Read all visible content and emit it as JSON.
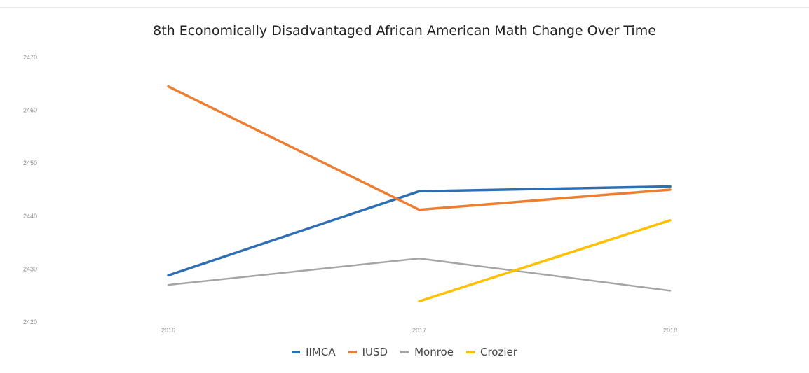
{
  "chart_data": {
    "type": "line",
    "title": "8th Economically Disadvantaged African American Math Change Over Time",
    "xlabel": "",
    "ylabel": "",
    "categories": [
      "2016",
      "2017",
      "2018"
    ],
    "ylim": [
      2420,
      2470
    ],
    "yticks": [
      "2470",
      "2460",
      "2450",
      "2440",
      "2430",
      "2420"
    ],
    "grid": false,
    "legend_position": "bottom",
    "series": [
      {
        "name": "IIMCA",
        "color": "#2e6fb4",
        "values": [
          2428.8,
          2444.7,
          2445.6
        ]
      },
      {
        "name": "IUSD",
        "color": "#ed7d31",
        "values": [
          2464.5,
          2441.2,
          2445.0
        ]
      },
      {
        "name": "Monroe",
        "color": "#a5a5a5",
        "values": [
          2427.0,
          2432.0,
          2425.9
        ]
      },
      {
        "name": "Crozier",
        "color": "#ffc000",
        "values": [
          null,
          2423.9,
          2439.2
        ]
      }
    ]
  }
}
